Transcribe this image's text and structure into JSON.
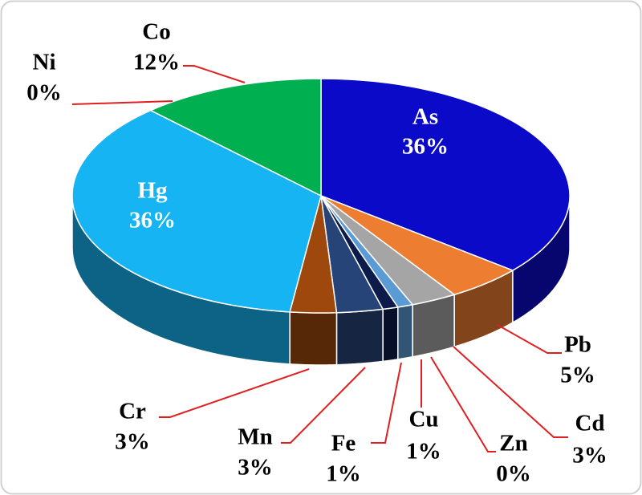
{
  "chart_data": {
    "type": "pie3d",
    "categories": [
      "As",
      "Pb",
      "Cd",
      "Zn",
      "Cu",
      "Fe",
      "Mn",
      "Cr",
      "Hg",
      "Ni",
      "Co"
    ],
    "values": [
      36,
      5,
      3,
      0,
      1,
      1,
      3,
      3,
      36,
      0,
      12
    ],
    "value_labels": [
      "36%",
      "5%",
      "3%",
      "0%",
      "1%",
      "1%",
      "3%",
      "3%",
      "36%",
      "0%",
      "12%"
    ],
    "colors": [
      "#0a0ac8",
      "#ed7d31",
      "#a5a5a5",
      "#fff2cc",
      "#5b9bd5",
      "#0d1b4a",
      "#264478",
      "#9e480e",
      "#16b4f2",
      "#ffd966",
      "#00b050"
    ]
  }
}
